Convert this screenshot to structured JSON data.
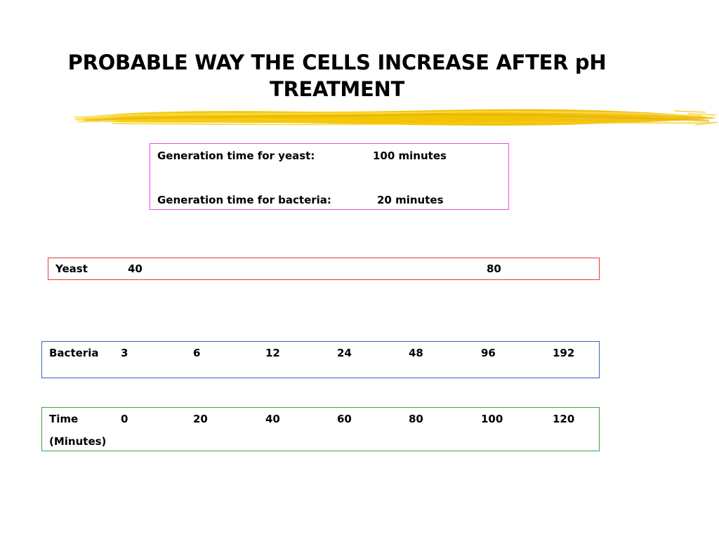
{
  "title": {
    "line1": "PROBABLE WAY THE CELLS INCREASE AFTER pH",
    "line2": "TREATMENT"
  },
  "generation_box": {
    "yeast_label": "Generation time for yeast:",
    "yeast_value": "100 minutes",
    "bacteria_label": "Generation time for bacteria:",
    "bacteria_value": "20 minutes"
  },
  "yeast_row": {
    "label": "Yeast",
    "values": [
      "40",
      "80"
    ]
  },
  "bacteria_row": {
    "label": "Bacteria",
    "values": [
      "3",
      "6",
      "12",
      "24",
      "48",
      "96",
      "192"
    ]
  },
  "time_row": {
    "label": "Time",
    "sublabel": "(Minutes)",
    "values": [
      "0",
      "20",
      "40",
      "60",
      "80",
      "100",
      "120"
    ]
  },
  "colors": {
    "brush_stroke": "#f5c400",
    "generation_border": "#e64ce6",
    "yeast_border": "#e63b3b",
    "bacteria_border": "#3a5fc4",
    "time_border": "#3aa34a"
  }
}
